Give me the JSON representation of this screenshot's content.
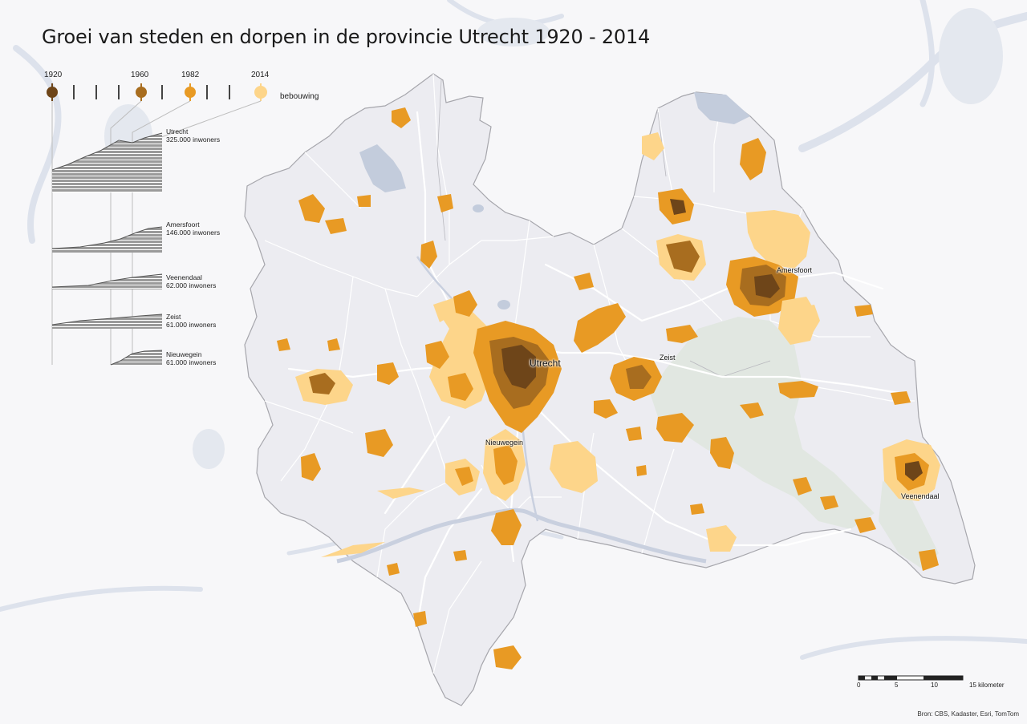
{
  "title": "Groei van steden en dorpen in de provincie Utrecht 1920 - 2014",
  "colors": {
    "1920": "#6e4519",
    "1960": "#a86d1f",
    "1982": "#e89a24",
    "2014": "#fdd58a",
    "province": "#ececf1",
    "background": "#f7f7f9",
    "water": "#c3ccdc",
    "nature": "#e1e7e1",
    "border": "#a6a6ac"
  },
  "legend": {
    "years": [
      "1920",
      "1960",
      "1982",
      "2014"
    ],
    "suffix": "bebouwing"
  },
  "sparklines": [
    {
      "name": "Utrecht",
      "population": "325.000 inwoners"
    },
    {
      "name": "Amersfoort",
      "population": "146.000 inwoners"
    },
    {
      "name": "Veenendaal",
      "population": "62.000 inwoners"
    },
    {
      "name": "Zeist",
      "population": "61.000 inwoners"
    },
    {
      "name": "Nieuwegein",
      "population": "61.000 inwoners"
    }
  ],
  "city_labels": [
    "Utrecht",
    "Amersfoort",
    "Zeist",
    "Nieuwegein",
    "Veenendaal"
  ],
  "scale": {
    "ticks": [
      "0",
      "5",
      "10",
      "15 kilometer"
    ]
  },
  "source": "Bron: CBS, Kadaster, Esri, TomTom"
}
